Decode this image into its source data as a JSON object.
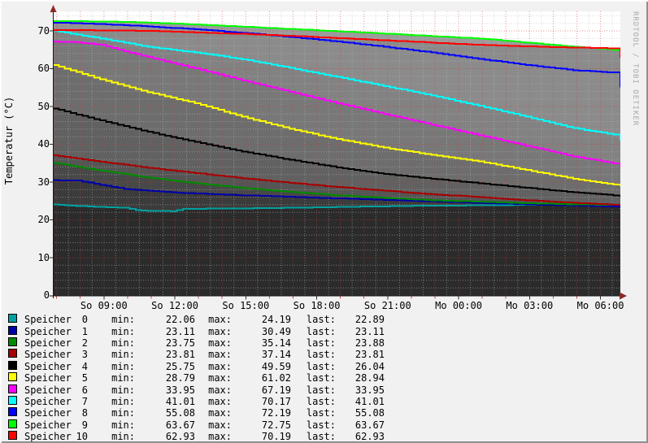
{
  "watermark": "RRDTOOL / TOBI OETIKER",
  "y_axis": {
    "title": "Temperatur (°C)",
    "ticks": [
      0,
      10,
      20,
      30,
      40,
      50,
      60,
      70
    ],
    "minor_step": 2,
    "major_step": 10
  },
  "x_axis": {
    "start_clock_hour": 6.84,
    "span_hours": 23.94,
    "ticks": [
      {
        "label": "So 09:00",
        "clock": 9
      },
      {
        "label": "So 12:00",
        "clock": 12
      },
      {
        "label": "So 15:00",
        "clock": 15
      },
      {
        "label": "So 18:00",
        "clock": 18
      },
      {
        "label": "So 21:00",
        "clock": 21
      },
      {
        "label": "Mo 00:00",
        "clock": 24
      },
      {
        "label": "Mo 03:00",
        "clock": 27
      },
      {
        "label": "Mo 06:00",
        "clock": 30
      }
    ]
  },
  "colors": {
    "plot_bg": "#ffffff",
    "page_bg": "#f1f1f1",
    "axis": "#1a1a1a",
    "arrow": "#8b2a2a",
    "grid_minor": "rgba(185,185,185,0.55)",
    "grid_major": "rgba(205,60,60,0.55)",
    "tick_red": "rgba(200,60,60,0.9)",
    "tick_dark": "#333333"
  },
  "legend": {
    "min_label": "min:",
    "max_label": "max:",
    "last_label": "last:",
    "rows": [
      {
        "name": "Speicher",
        "num": "0",
        "min": "22.06",
        "max": "24.19",
        "last": "22.89"
      },
      {
        "name": "Speicher",
        "num": "1",
        "min": "23.11",
        "max": "30.49",
        "last": "23.11"
      },
      {
        "name": "Speicher",
        "num": "2",
        "min": "23.75",
        "max": "35.14",
        "last": "23.88"
      },
      {
        "name": "Speicher",
        "num": "3",
        "min": "23.81",
        "max": "37.14",
        "last": "23.81"
      },
      {
        "name": "Speicher",
        "num": "4",
        "min": "25.75",
        "max": "49.59",
        "last": "26.04"
      },
      {
        "name": "Speicher",
        "num": "5",
        "min": "28.79",
        "max": "61.02",
        "last": "28.94"
      },
      {
        "name": "Speicher",
        "num": "6",
        "min": "33.95",
        "max": "67.19",
        "last": "33.95"
      },
      {
        "name": "Speicher",
        "num": "7",
        "min": "41.01",
        "max": "70.17",
        "last": "41.01"
      },
      {
        "name": "Speicher",
        "num": "8",
        "min": "55.08",
        "max": "72.19",
        "last": "55.08"
      },
      {
        "name": "Speicher",
        "num": "9",
        "min": "63.67",
        "max": "72.75",
        "last": "63.67"
      },
      {
        "name": "Speicher",
        "num": "10",
        "min": "62.93",
        "max": "70.19",
        "last": "62.93"
      }
    ]
  },
  "chart_data": {
    "type": "area",
    "title": "",
    "ylabel": "Temperatur (°C)",
    "ylim": [
      0,
      75.2
    ],
    "x_unit": "hours from plot start (≈So 06:50, 24 h shown)",
    "grid": true,
    "legend_position": "bottom",
    "fill_order": [
      9,
      8,
      10,
      7,
      6,
      5,
      4,
      3,
      2,
      1,
      0
    ],
    "series": [
      {
        "name": "Speicher 0",
        "color": "#00a0a0",
        "fill": "#2b2b2b",
        "points": [
          [
            0,
            24.1
          ],
          [
            1,
            23.7
          ],
          [
            2,
            23.4
          ],
          [
            3,
            23.2
          ],
          [
            3.5,
            22.6
          ],
          [
            4,
            22.4
          ],
          [
            5,
            22.3
          ],
          [
            5.5,
            22.9
          ],
          [
            7,
            23.0
          ],
          [
            9,
            23.1
          ],
          [
            11,
            23.3
          ],
          [
            13,
            23.5
          ],
          [
            15,
            23.7
          ],
          [
            17,
            23.8
          ],
          [
            19,
            23.9
          ],
          [
            21,
            24.0
          ],
          [
            23,
            24.0
          ],
          [
            23.7,
            23.9
          ],
          [
            24,
            22.89
          ]
        ]
      },
      {
        "name": "Speicher 1",
        "color": "#0000a8",
        "fill": "#3b3b3b",
        "points": [
          [
            0,
            30.5
          ],
          [
            1,
            30.4
          ],
          [
            2,
            29.3
          ],
          [
            3,
            28.2
          ],
          [
            4,
            27.7
          ],
          [
            5,
            27.3
          ],
          [
            6,
            27.0
          ],
          [
            8,
            26.5
          ],
          [
            10,
            26.1
          ],
          [
            12,
            25.7
          ],
          [
            14,
            25.3
          ],
          [
            16,
            24.9
          ],
          [
            18,
            24.5
          ],
          [
            20,
            24.1
          ],
          [
            22,
            23.8
          ],
          [
            23.7,
            23.5
          ],
          [
            24,
            23.11
          ]
        ]
      },
      {
        "name": "Speicher 2",
        "color": "#008a00",
        "fill": "#484848",
        "points": [
          [
            0,
            35.1
          ],
          [
            2,
            33.0
          ],
          [
            4,
            31.2
          ],
          [
            6,
            29.7
          ],
          [
            8,
            28.4
          ],
          [
            10,
            27.4
          ],
          [
            12,
            26.5
          ],
          [
            14,
            25.8
          ],
          [
            16,
            25.2
          ],
          [
            18,
            24.8
          ],
          [
            20,
            24.4
          ],
          [
            22,
            24.1
          ],
          [
            23.7,
            23.95
          ],
          [
            24,
            23.88
          ]
        ]
      },
      {
        "name": "Speicher 3",
        "color": "#a80000",
        "fill": "#555555",
        "points": [
          [
            0,
            37.1
          ],
          [
            2,
            35.4
          ],
          [
            4,
            33.8
          ],
          [
            6,
            32.4
          ],
          [
            8,
            31.0
          ],
          [
            10,
            29.8
          ],
          [
            12,
            28.7
          ],
          [
            14,
            27.7
          ],
          [
            16,
            26.8
          ],
          [
            18,
            26.0
          ],
          [
            20,
            25.2
          ],
          [
            22,
            24.5
          ],
          [
            23.7,
            24.0
          ],
          [
            24,
            23.81
          ]
        ]
      },
      {
        "name": "Speicher 4",
        "color": "#000000",
        "fill": "#616161",
        "points": [
          [
            0,
            49.5
          ],
          [
            2,
            46.3
          ],
          [
            4,
            43.3
          ],
          [
            6,
            40.6
          ],
          [
            8,
            38.1
          ],
          [
            10,
            35.9
          ],
          [
            12,
            33.9
          ],
          [
            14,
            32.2
          ],
          [
            16,
            30.9
          ],
          [
            18,
            29.7
          ],
          [
            20,
            28.5
          ],
          [
            22,
            27.3
          ],
          [
            23.7,
            26.5
          ],
          [
            24,
            26.04
          ]
        ]
      },
      {
        "name": "Speicher 5",
        "color": "#ffff00",
        "fill": "#6d6d6d",
        "points": [
          [
            0,
            61.0
          ],
          [
            2,
            57.2
          ],
          [
            4,
            53.8
          ],
          [
            6,
            50.9
          ],
          [
            8,
            47.3
          ],
          [
            10,
            44.1
          ],
          [
            12,
            41.4
          ],
          [
            14,
            39.1
          ],
          [
            16,
            37.2
          ],
          [
            18,
            35.5
          ],
          [
            20,
            33.2
          ],
          [
            22,
            30.9
          ],
          [
            23.7,
            29.4
          ],
          [
            24,
            28.94
          ]
        ]
      },
      {
        "name": "Speicher 6",
        "color": "#ff00ff",
        "fill": "#787878",
        "points": [
          [
            0,
            67.2
          ],
          [
            1,
            67.0
          ],
          [
            2,
            66.3
          ],
          [
            3,
            64.6
          ],
          [
            4,
            63.1
          ],
          [
            6,
            60.1
          ],
          [
            8,
            56.9
          ],
          [
            10,
            53.9
          ],
          [
            12,
            50.9
          ],
          [
            14,
            48.0
          ],
          [
            16,
            45.2
          ],
          [
            18,
            42.4
          ],
          [
            20,
            39.6
          ],
          [
            22,
            36.8
          ],
          [
            23.7,
            35.0
          ],
          [
            24,
            33.95
          ]
        ]
      },
      {
        "name": "Speicher 7",
        "color": "#00ffff",
        "fill": "#828282",
        "points": [
          [
            0,
            70.1
          ],
          [
            1,
            69.0
          ],
          [
            2,
            68.0
          ],
          [
            4,
            65.8
          ],
          [
            6,
            64.3
          ],
          [
            8,
            62.5
          ],
          [
            10,
            60.2
          ],
          [
            12,
            57.8
          ],
          [
            14,
            55.4
          ],
          [
            16,
            52.9
          ],
          [
            18,
            50.2
          ],
          [
            20,
            47.3
          ],
          [
            22,
            44.3
          ],
          [
            23.7,
            42.6
          ],
          [
            24,
            41.01
          ]
        ]
      },
      {
        "name": "Speicher 8",
        "color": "#0000ff",
        "fill": "#939393",
        "points": [
          [
            0,
            72.2
          ],
          [
            2,
            71.8
          ],
          [
            4,
            71.2
          ],
          [
            6,
            70.4
          ],
          [
            8,
            69.5
          ],
          [
            10,
            68.4
          ],
          [
            12,
            67.2
          ],
          [
            14,
            65.8
          ],
          [
            16,
            64.3
          ],
          [
            18,
            62.6
          ],
          [
            20,
            61.0
          ],
          [
            22,
            59.6
          ],
          [
            23.7,
            59.0
          ],
          [
            24,
            55.08
          ]
        ]
      },
      {
        "name": "Speicher 9",
        "color": "#00ff00",
        "fill": "#9c9c9c",
        "points": [
          [
            0,
            72.6
          ],
          [
            2,
            72.5
          ],
          [
            4,
            72.2
          ],
          [
            6,
            71.7
          ],
          [
            8,
            71.1
          ],
          [
            10,
            70.5
          ],
          [
            12,
            69.9
          ],
          [
            14,
            69.3
          ],
          [
            16,
            68.6
          ],
          [
            18,
            68.0
          ],
          [
            20,
            66.9
          ],
          [
            22,
            65.8
          ],
          [
            23.7,
            65.0
          ],
          [
            24,
            63.67
          ]
        ]
      },
      {
        "name": "Speicher 10",
        "color": "#ff0000",
        "fill": "#8b8b8b",
        "points": [
          [
            0,
            70.2
          ],
          [
            2,
            70.15
          ],
          [
            4,
            70.0
          ],
          [
            6,
            69.6
          ],
          [
            8,
            69.2
          ],
          [
            10,
            68.7
          ],
          [
            12,
            68.1
          ],
          [
            14,
            67.5
          ],
          [
            16,
            66.9
          ],
          [
            18,
            66.3
          ],
          [
            20,
            65.9
          ],
          [
            22,
            65.6
          ],
          [
            23.7,
            65.4
          ],
          [
            24,
            62.93
          ]
        ]
      }
    ]
  }
}
